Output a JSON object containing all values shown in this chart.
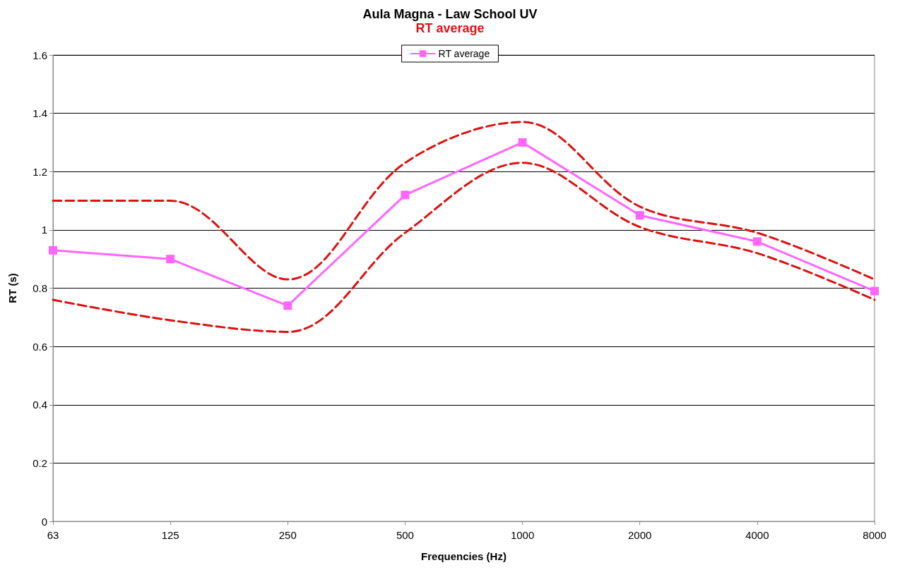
{
  "chart_data": {
    "type": "line",
    "title": "Aula Magna - Law School UV",
    "subtitle": "RT average",
    "xlabel": "Frequencies (Hz)",
    "ylabel": "RT (s)",
    "categories": [
      "63",
      "125",
      "250",
      "500",
      "1000",
      "2000",
      "4000",
      "8000"
    ],
    "series": [
      {
        "name": "RT average",
        "color": "#ff66ff",
        "marker": "square",
        "line_style": "solid",
        "values": [
          0.93,
          0.9,
          0.74,
          1.12,
          1.3,
          1.05,
          0.96,
          0.79
        ]
      },
      {
        "color": "#dd1111",
        "marker": "none",
        "line_style": "dashed",
        "values": [
          1.1,
          1.1,
          0.83,
          1.23,
          1.37,
          1.08,
          0.99,
          0.83
        ]
      },
      {
        "color": "#dd1111",
        "marker": "none",
        "line_style": "dashed",
        "values": [
          0.76,
          0.69,
          0.65,
          0.99,
          1.23,
          1.01,
          0.92,
          0.76
        ]
      }
    ],
    "ylim": [
      0,
      1.6
    ],
    "yticks": [
      0,
      0.2,
      0.4,
      0.6,
      0.8,
      1,
      1.2,
      1.4,
      1.6
    ],
    "grid": "y",
    "legend": "top"
  }
}
